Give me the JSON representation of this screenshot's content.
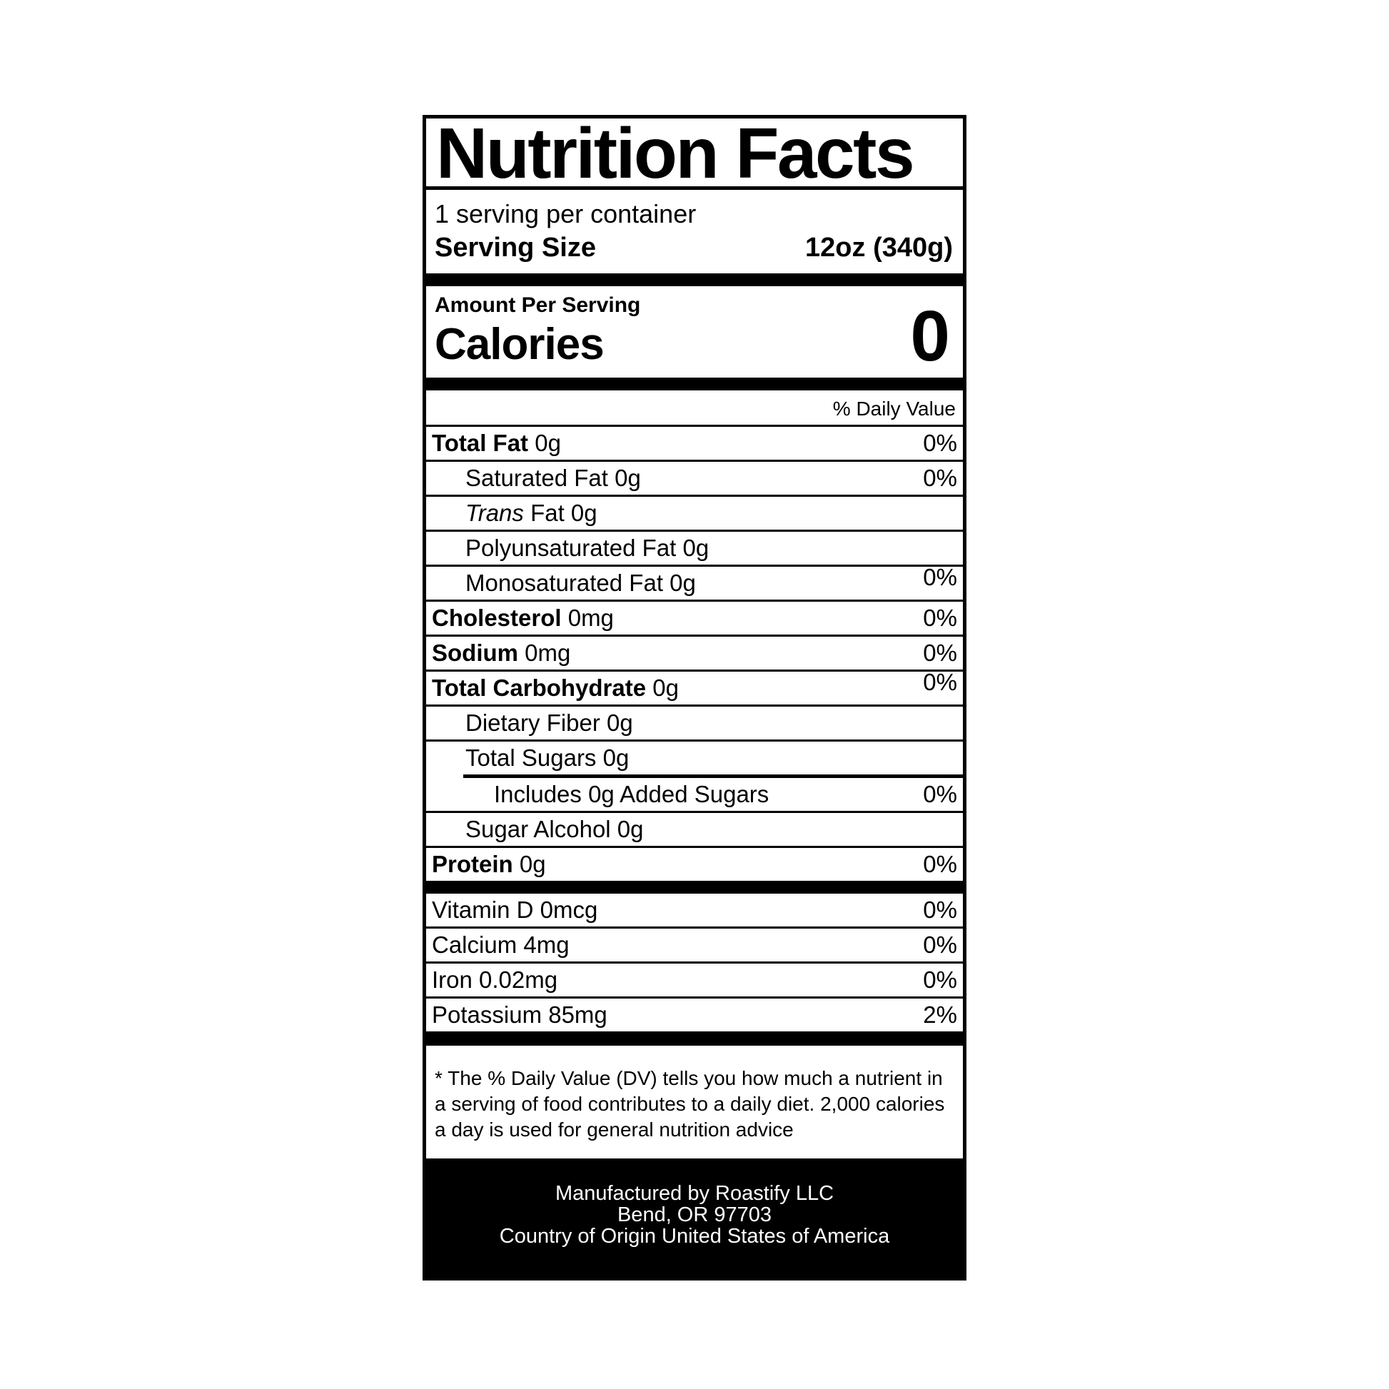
{
  "label": {
    "title": "Nutrition Facts",
    "servings_per_container": "1 serving per container",
    "serving_size_label": "Serving Size",
    "serving_size_value": "12oz (340g)",
    "amount_per_serving": "Amount Per Serving",
    "calories_label": "Calories",
    "calories_value": "0",
    "daily_value_header": "% Daily Value",
    "nutrients": [
      {
        "parts": [
          {
            "t": "Total Fat",
            "b": 1
          },
          {
            "t": " 0g"
          }
        ],
        "pct": "0%",
        "indent": 0,
        "sep": "thin"
      },
      {
        "parts": [
          {
            "t": "Saturated Fat 0g"
          }
        ],
        "pct": "0%",
        "indent": 1,
        "sep": "thin"
      },
      {
        "parts": [
          {
            "t": "Trans",
            "i": 1
          },
          {
            "t": " Fat 0g"
          }
        ],
        "pct": "",
        "indent": 1,
        "sep": "thin"
      },
      {
        "parts": [
          {
            "t": "Polyunsaturated Fat 0g"
          }
        ],
        "pct": "",
        "indent": 1,
        "sep": "thin"
      },
      {
        "parts": [
          {
            "t": "Monosaturated Fat 0g"
          }
        ],
        "pct": "0%",
        "indent": 1,
        "sep": "thin",
        "raised": true
      },
      {
        "parts": [
          {
            "t": "Cholesterol",
            "b": 1
          },
          {
            "t": " 0mg"
          }
        ],
        "pct": "0%",
        "indent": 0,
        "sep": "thin"
      },
      {
        "parts": [
          {
            "t": "Sodium",
            "b": 1
          },
          {
            "t": " 0mg"
          }
        ],
        "pct": "0%",
        "indent": 0,
        "sep": "thin"
      },
      {
        "parts": [
          {
            "t": "Total Carbohydrate",
            "b": 1
          },
          {
            "t": " 0g"
          }
        ],
        "pct": "0%",
        "indent": 0,
        "sep": "thin",
        "raised": true
      },
      {
        "parts": [
          {
            "t": "Dietary Fiber 0g"
          }
        ],
        "pct": "",
        "indent": 1,
        "sep": "thin"
      },
      {
        "parts": [
          {
            "t": "Total Sugars 0g"
          }
        ],
        "pct": "",
        "indent": 1,
        "sep": "indented"
      },
      {
        "parts": [
          {
            "t": "Includes 0g Added Sugars"
          }
        ],
        "pct": "0%",
        "indent": 2,
        "sep": "thin"
      },
      {
        "parts": [
          {
            "t": "Sugar Alcohol 0g"
          }
        ],
        "pct": "",
        "indent": 1,
        "sep": "thin"
      },
      {
        "parts": [
          {
            "t": "Protein",
            "b": 1
          },
          {
            "t": " 0g"
          }
        ],
        "pct": "0%",
        "indent": 0,
        "sep": "none"
      }
    ],
    "micronutrients": [
      {
        "parts": [
          {
            "t": "Vitamin D 0mcg"
          }
        ],
        "pct": "0%",
        "indent": 0,
        "sep": "thin"
      },
      {
        "parts": [
          {
            "t": "Calcium 4mg"
          }
        ],
        "pct": "0%",
        "indent": 0,
        "sep": "thin"
      },
      {
        "parts": [
          {
            "t": "Iron 0.02mg"
          }
        ],
        "pct": "0%",
        "indent": 0,
        "sep": "thin"
      },
      {
        "parts": [
          {
            "t": "Potassium 85mg"
          }
        ],
        "pct": "2%",
        "indent": 0,
        "sep": "none"
      }
    ],
    "footnote": "* The % Daily Value (DV) tells you how much a nutrient in a serving of food contributes to a daily diet. 2,000 calories a day is used for general nutrition advice",
    "footer_lines": [
      "Manufactured by Roastify LLC",
      "Bend, OR 97703",
      "Country of Origin United States of America"
    ],
    "colors": {
      "ink": "#000000",
      "paper": "#ffffff"
    }
  }
}
